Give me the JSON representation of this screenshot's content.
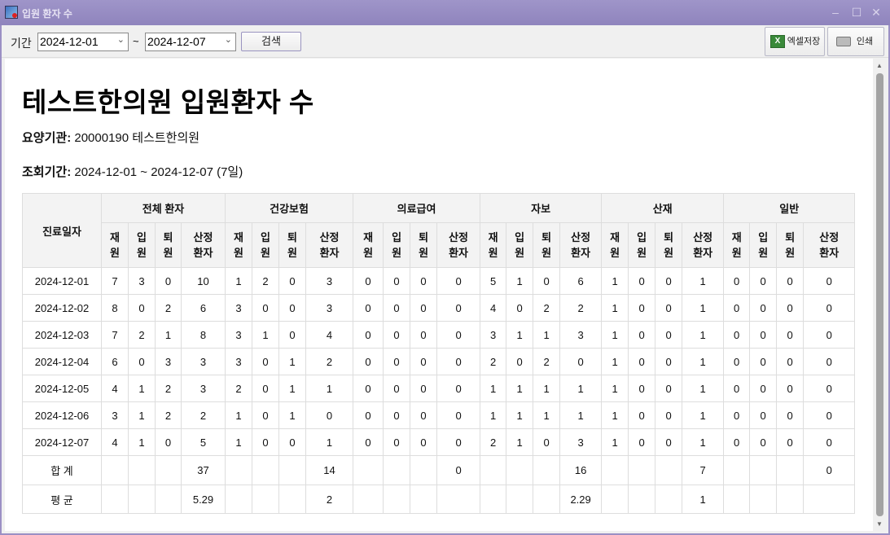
{
  "window": {
    "title": "입원 환자 수"
  },
  "toolbar": {
    "period_label": "기간",
    "start_date": "2024-12-01",
    "end_date": "2024-12-07",
    "tilde": "~",
    "search_label": "검색",
    "excel_label": "엑셀저장",
    "print_label": "인쇄"
  },
  "report": {
    "title": "테스트한의원 입원환자 수",
    "institution_label": "요양기관:",
    "institution_value": "20000190 테스트한의원",
    "period_label": "조회기간:",
    "period_value": "2024-12-01 ~ 2024-12-07 (7일)"
  },
  "table": {
    "date_header": "진료일자",
    "groups": [
      "전체 환자",
      "건강보험",
      "의료급여",
      "자보",
      "산재",
      "일반"
    ],
    "subheaders": [
      "재\n원",
      "입\n원",
      "퇴\n원",
      "산정\n환자"
    ],
    "rows": [
      {
        "date": "2024-12-01",
        "values": [
          7,
          3,
          0,
          10,
          1,
          2,
          0,
          3,
          0,
          0,
          0,
          0,
          5,
          1,
          0,
          6,
          1,
          0,
          0,
          1,
          0,
          0,
          0,
          0
        ]
      },
      {
        "date": "2024-12-02",
        "values": [
          8,
          0,
          2,
          6,
          3,
          0,
          0,
          3,
          0,
          0,
          0,
          0,
          4,
          0,
          2,
          2,
          1,
          0,
          0,
          1,
          0,
          0,
          0,
          0
        ]
      },
      {
        "date": "2024-12-03",
        "values": [
          7,
          2,
          1,
          8,
          3,
          1,
          0,
          4,
          0,
          0,
          0,
          0,
          3,
          1,
          1,
          3,
          1,
          0,
          0,
          1,
          0,
          0,
          0,
          0
        ]
      },
      {
        "date": "2024-12-04",
        "values": [
          6,
          0,
          3,
          3,
          3,
          0,
          1,
          2,
          0,
          0,
          0,
          0,
          2,
          0,
          2,
          0,
          1,
          0,
          0,
          1,
          0,
          0,
          0,
          0
        ]
      },
      {
        "date": "2024-12-05",
        "values": [
          4,
          1,
          2,
          3,
          2,
          0,
          1,
          1,
          0,
          0,
          0,
          0,
          1,
          1,
          1,
          1,
          1,
          0,
          0,
          1,
          0,
          0,
          0,
          0
        ]
      },
      {
        "date": "2024-12-06",
        "values": [
          3,
          1,
          2,
          2,
          1,
          0,
          1,
          0,
          0,
          0,
          0,
          0,
          1,
          1,
          1,
          1,
          1,
          0,
          0,
          1,
          0,
          0,
          0,
          0
        ]
      },
      {
        "date": "2024-12-07",
        "values": [
          4,
          1,
          0,
          5,
          1,
          0,
          0,
          1,
          0,
          0,
          0,
          0,
          2,
          1,
          0,
          3,
          1,
          0,
          0,
          1,
          0,
          0,
          0,
          0
        ]
      }
    ],
    "total_label": "합 계",
    "totals": [
      "37",
      "14",
      "0",
      "16",
      "7",
      "0"
    ],
    "average_label": "평 균",
    "averages": [
      "5.29",
      "2",
      "",
      "2.29",
      "1",
      ""
    ]
  }
}
